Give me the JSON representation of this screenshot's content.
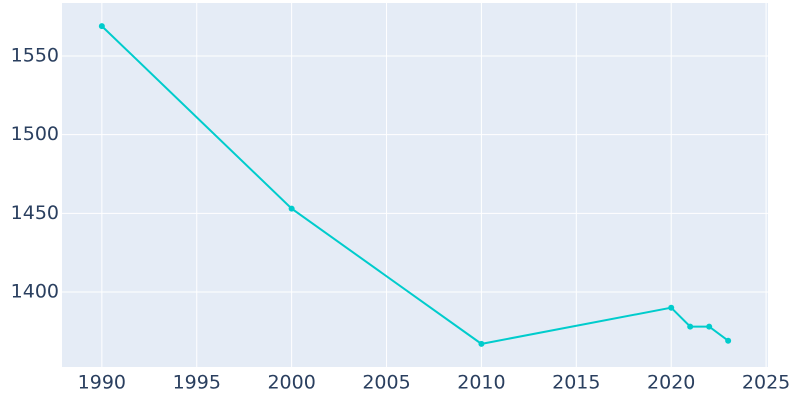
{
  "chart_data": {
    "type": "line",
    "x": [
      1990,
      2000,
      2010,
      2020,
      2021,
      2022,
      2023
    ],
    "series": [
      {
        "color": "#00cccc",
        "values": [
          1569,
          1453,
          1367,
          1390,
          1378,
          1378,
          1369
        ]
      }
    ],
    "xlim": [
      1987.9,
      2025.1
    ],
    "xticks": [
      1990,
      1995,
      2000,
      2005,
      2010,
      2015,
      2020,
      2025
    ],
    "ylim": [
      1352.3,
      1583.7
    ],
    "yticks": [
      1400,
      1450,
      1500,
      1550
    ],
    "grid": true
  }
}
